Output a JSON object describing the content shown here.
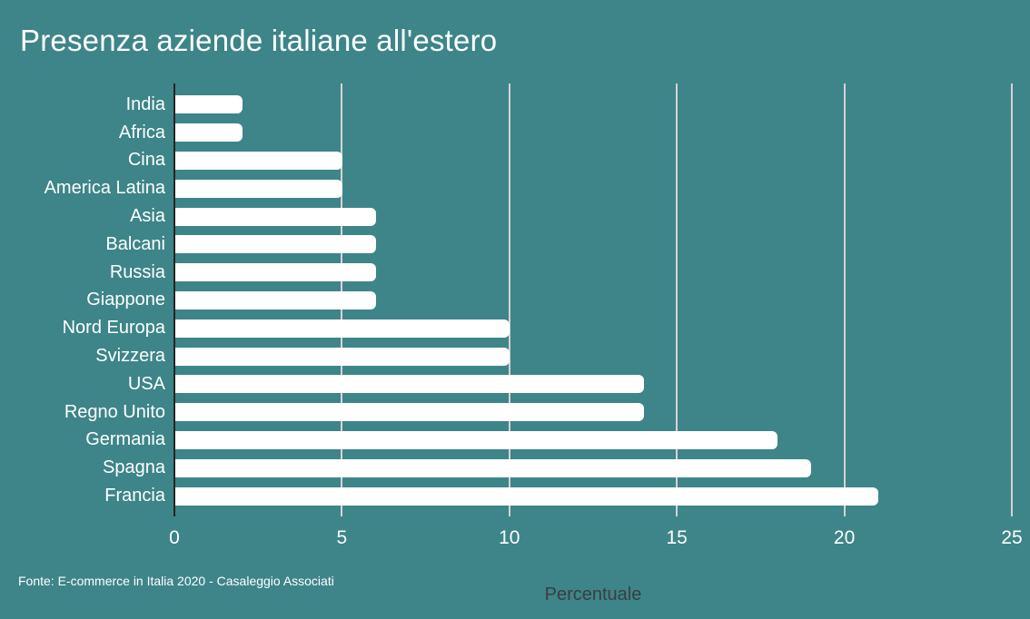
{
  "title": "Presenza aziende italiane all'estero",
  "source_note": "Fonte: E-commerce in Italia 2020 - Casaleggio Associati",
  "colors": {
    "background": "#3d8588",
    "bar_fill": "#ffffff",
    "gridline": "#d4d4d4",
    "axis_line": "#252525",
    "title_text": "#ffffff",
    "category_text": "#ffffff",
    "tick_text": "#ffffff",
    "xaxis_label_text": "#3a3e40"
  },
  "chart_data": {
    "type": "bar",
    "orientation": "horizontal",
    "title": "Presenza aziende italiane all'estero",
    "xlabel": "Percentuale",
    "ylabel": "",
    "xlim": [
      0,
      25
    ],
    "xticks": [
      0,
      5,
      10,
      15,
      20,
      25
    ],
    "grid": true,
    "legend": false,
    "categories": [
      "India",
      "Africa",
      "Cina",
      "America Latina",
      "Asia",
      "Balcani",
      "Russia",
      "Giappone",
      "Nord Europa",
      "Svizzera",
      "USA",
      "Regno Unito",
      "Germania",
      "Spagna",
      "Francia"
    ],
    "values": [
      2,
      2,
      5,
      5,
      6,
      6,
      6,
      6,
      10,
      10,
      14,
      14,
      18,
      19,
      21
    ]
  }
}
